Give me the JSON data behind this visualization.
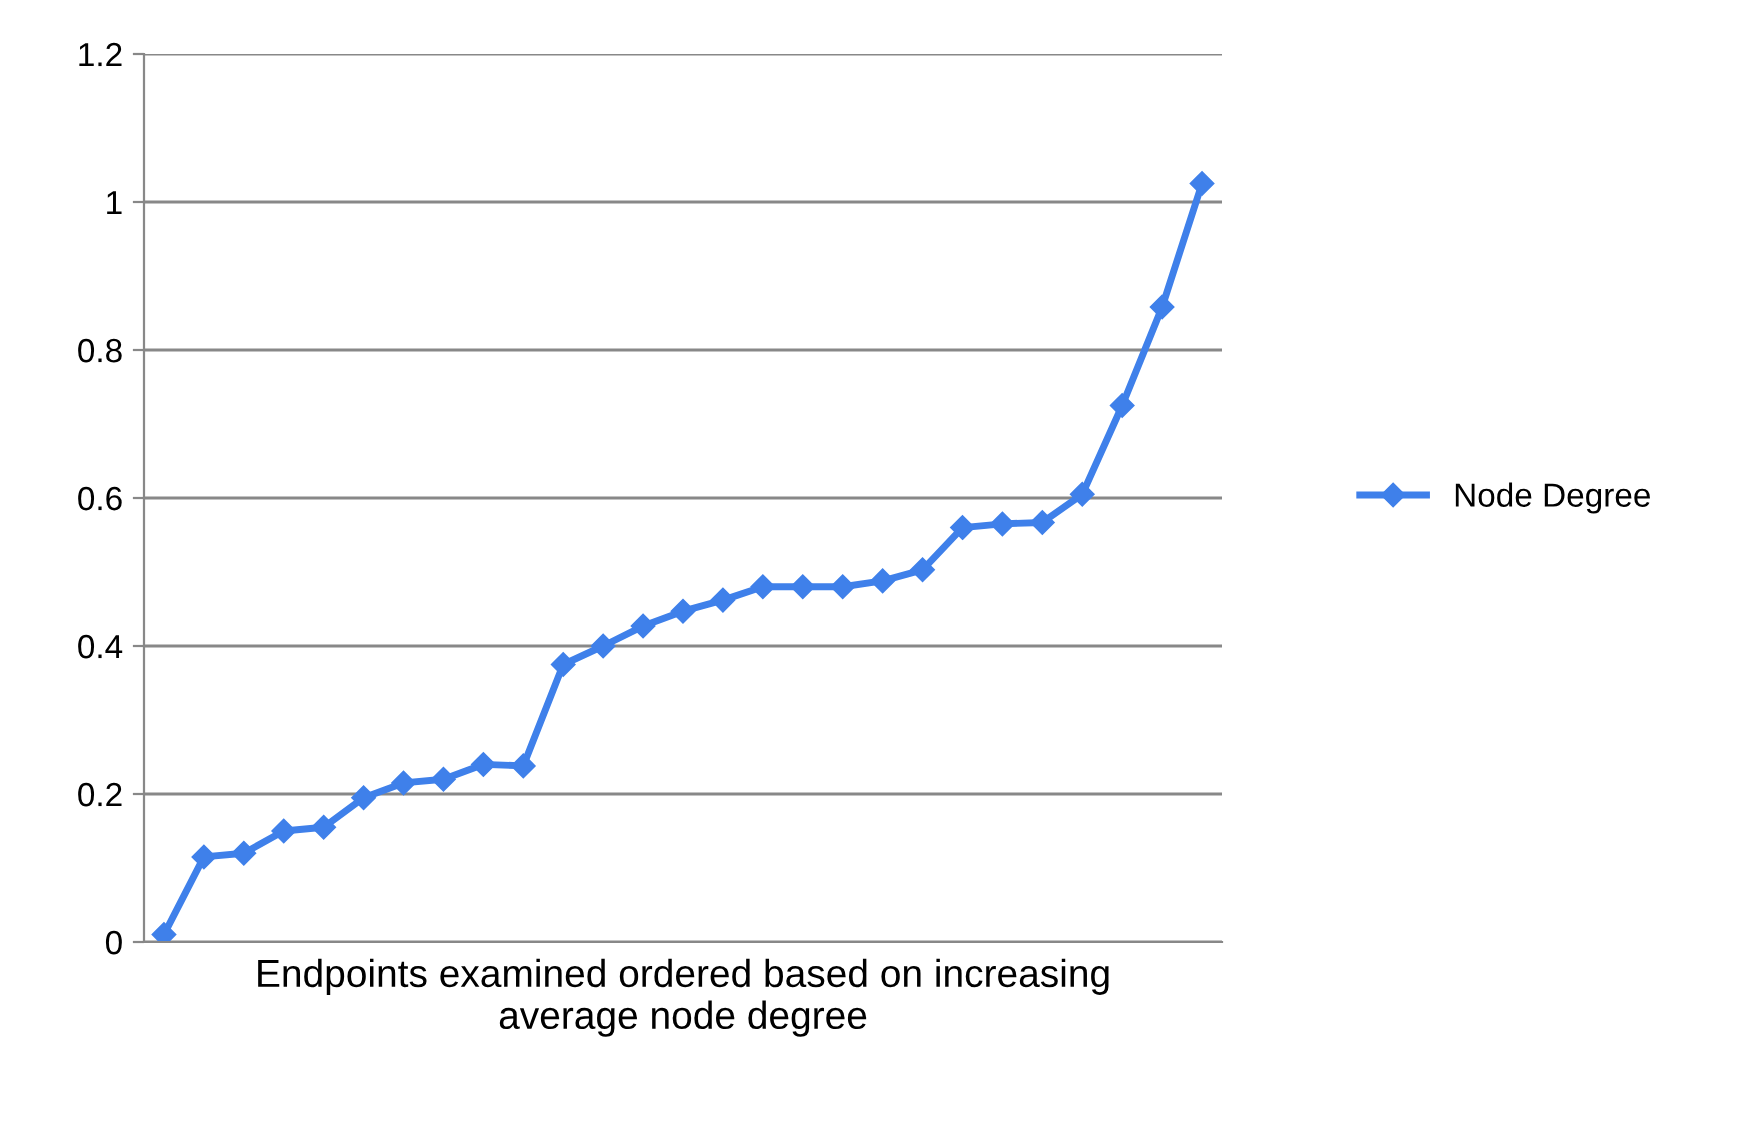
{
  "chart_data": {
    "type": "line",
    "xlabel": "Endpoints examined ordered based on increasing\naverage node degree",
    "categories": [
      null,
      null,
      null,
      null,
      null,
      null,
      null,
      null,
      null,
      null,
      null,
      null,
      null,
      null,
      null,
      null,
      null,
      null,
      null,
      null,
      null,
      null,
      null,
      null,
      null,
      null,
      null
    ],
    "series": [
      {
        "name": "Node Degree",
        "color": "#3f80ea",
        "values": [
          0.01,
          0.115,
          0.12,
          0.15,
          0.155,
          0.195,
          0.215,
          0.22,
          0.24,
          0.238,
          0.375,
          0.4,
          0.427,
          0.447,
          0.462,
          0.48,
          0.48,
          0.48,
          0.488,
          0.503,
          0.56,
          0.565,
          0.567,
          0.605,
          0.725,
          0.858,
          1.025
        ]
      }
    ],
    "ylim": [
      0,
      1.2
    ],
    "yticks": [
      0,
      0.2,
      0.4,
      0.6,
      0.8,
      1,
      1.2
    ],
    "grid": "y",
    "legend": "right",
    "marker": "diamond",
    "line_style": "solid",
    "tick_labels": "y"
  }
}
